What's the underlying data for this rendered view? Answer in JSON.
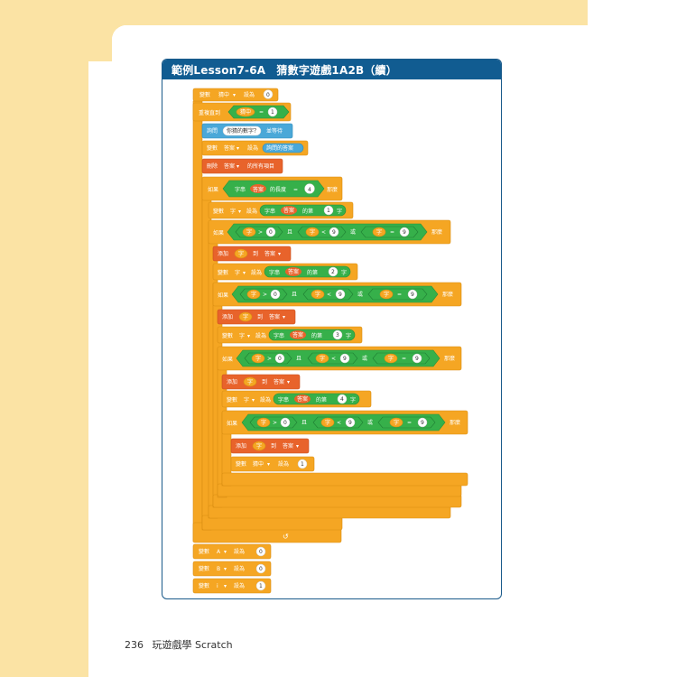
{
  "lesson": {
    "title": "範例Lesson7-6A　猜數字遊戲1A2B（續）"
  },
  "footer": {
    "page_number": "236",
    "book_title": "玩遊戲學 Scratch"
  },
  "colors": {
    "variables": "#f5a623",
    "control": "#f5a623",
    "operators": "#36b04a",
    "sensing": "#4aa8d8",
    "list": "#e8632b",
    "header": "#115c91"
  },
  "blocks": {
    "set_found_0": {
      "kw1": "變數",
      "var": "猜中",
      "kw2": "設為",
      "val": "0"
    },
    "repeat_until": {
      "kw": "重複直到",
      "var": "猜中",
      "op": "=",
      "val": "1"
    },
    "ask": {
      "kw1": "詢問",
      "prompt": "你猜的數字？",
      "kw2": "並等待"
    },
    "set_answer": {
      "kw1": "變數",
      "var": "答案",
      "kw2": "設為",
      "rep": "詢問的答案"
    },
    "delete_all": {
      "kw1": "刪除",
      "list": "答案",
      "kw2": "的所有項目"
    },
    "if_len": {
      "kw1": "如果",
      "kw2": "字串",
      "var": "答案",
      "kw3": "的長度",
      "op": "=",
      "val": "4",
      "kw4": "那麼"
    },
    "set_ch1": {
      "kw1": "變數",
      "var": "字",
      "kw2": "設為",
      "kw3": "字串",
      "src": "答案",
      "kw4": "的第",
      "idx": "1",
      "kw5": "字"
    },
    "if_c1": {
      "kw1": "如果",
      "v1": "字",
      "op1": ">",
      "n1": "0",
      "and": "且",
      "v2": "字",
      "op2": "<",
      "n2": "9",
      "or": "或",
      "v3": "字",
      "op3": "=",
      "n3": "9",
      "kw2": "那麼"
    },
    "add1": {
      "kw1": "添加",
      "var": "字",
      "kw2": "到",
      "list": "答案"
    },
    "set_ch2": {
      "kw1": "變數",
      "var": "字",
      "kw2": "設為",
      "kw3": "字串",
      "src": "答案",
      "kw4": "的第",
      "idx": "2",
      "kw5": "字"
    },
    "if_c2": {
      "kw1": "如果",
      "v1": "字",
      "op1": ">",
      "n1": "0",
      "and": "且",
      "v2": "字",
      "op2": "<",
      "n2": "9",
      "or": "或",
      "v3": "字",
      "op3": "=",
      "n3": "9",
      "kw2": "那麼"
    },
    "add2": {
      "kw1": "添加",
      "var": "字",
      "kw2": "到",
      "list": "答案"
    },
    "set_ch3": {
      "kw1": "變數",
      "var": "字",
      "kw2": "設為",
      "kw3": "字串",
      "src": "答案",
      "kw4": "的第",
      "idx": "3",
      "kw5": "字"
    },
    "if_c3": {
      "kw1": "如果",
      "v1": "字",
      "op1": ">",
      "n1": "0",
      "and": "且",
      "v2": "字",
      "op2": "<",
      "n2": "9",
      "or": "或",
      "v3": "字",
      "op3": "=",
      "n3": "9",
      "kw2": "那麼"
    },
    "add3": {
      "kw1": "添加",
      "var": "字",
      "kw2": "到",
      "list": "答案"
    },
    "set_ch4": {
      "kw1": "變數",
      "var": "字",
      "kw2": "設為",
      "kw3": "字串",
      "src": "答案",
      "kw4": "的第",
      "idx": "4",
      "kw5": "字"
    },
    "if_c4": {
      "kw1": "如果",
      "v1": "字",
      "op1": ">",
      "n1": "0",
      "and": "且",
      "v2": "字",
      "op2": "<",
      "n2": "9",
      "or": "或",
      "v3": "字",
      "op3": "=",
      "n3": "9",
      "kw2": "那麼"
    },
    "add4": {
      "kw1": "添加",
      "var": "字",
      "kw2": "到",
      "list": "答案"
    },
    "set_found_1": {
      "kw1": "變數",
      "var": "猜中",
      "kw2": "設為",
      "val": "1"
    },
    "set_A": {
      "kw1": "變數",
      "var": "A",
      "kw2": "設為",
      "val": "0"
    },
    "set_B": {
      "kw1": "變數",
      "var": "B",
      "kw2": "設為",
      "val": "0"
    },
    "set_i": {
      "kw1": "變數",
      "var": "i",
      "kw2": "設為",
      "val": "1"
    }
  }
}
